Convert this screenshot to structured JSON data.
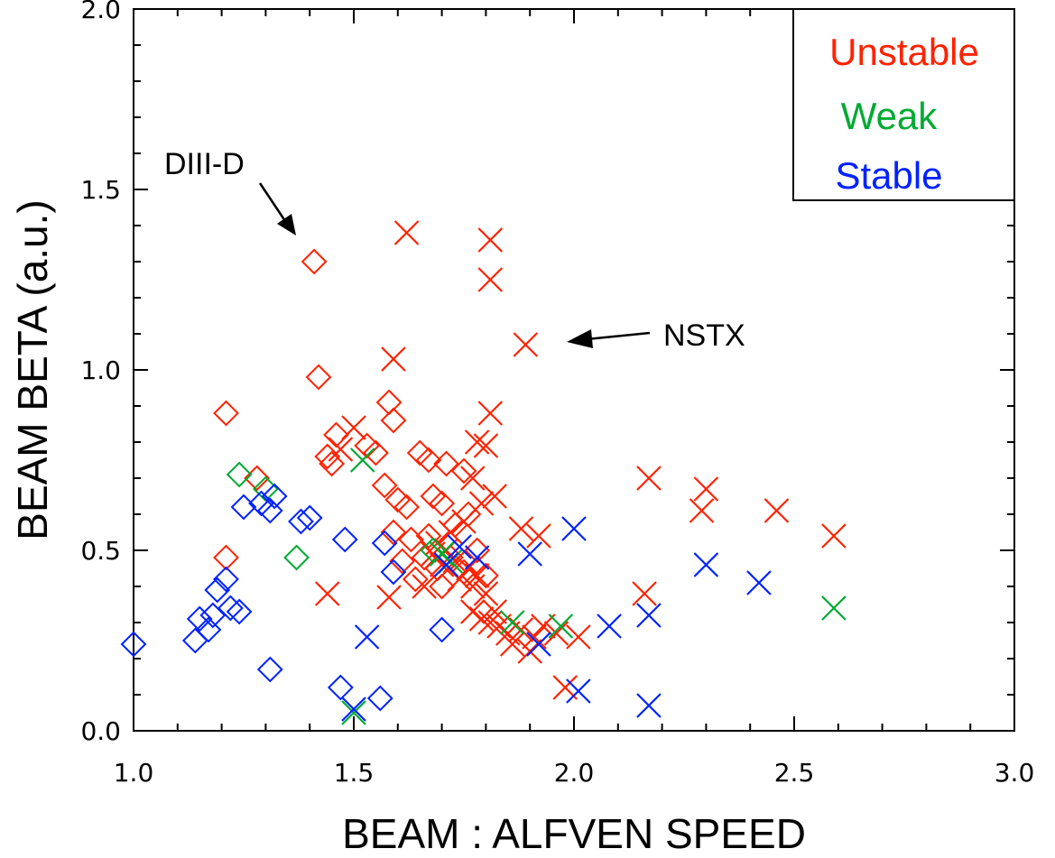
{
  "chart_data": {
    "type": "scatter",
    "xlabel": "BEAM : ALFVEN SPEED",
    "ylabel": "BEAM BETA (a.u.)",
    "xlim": [
      1.0,
      3.0
    ],
    "ylim": [
      0.0,
      2.0
    ],
    "x_ticks": [
      "1.0",
      "1.5",
      "2.0",
      "2.5",
      "3.0"
    ],
    "y_ticks": [
      "0.0",
      "0.5",
      "1.0",
      "1.5",
      "2.0"
    ],
    "grid": false,
    "legend_position": "top-right",
    "legend": [
      {
        "label": "Unstable",
        "color": "#ff2200"
      },
      {
        "label": "Weak",
        "color": "#00aa33"
      },
      {
        "label": "Stable",
        "color": "#0022ff"
      }
    ],
    "annotations": [
      {
        "text": "DIII-D",
        "points_to": [
          1.41,
          1.3
        ]
      },
      {
        "text": "NSTX",
        "points_to": [
          1.89,
          1.07
        ]
      }
    ],
    "series": [
      {
        "name": "Unstable",
        "color": "#ff2200",
        "diamonds": [
          [
            1.41,
            1.3
          ],
          [
            1.42,
            0.98
          ],
          [
            1.21,
            0.88
          ],
          [
            1.58,
            0.91
          ],
          [
            1.59,
            0.86
          ],
          [
            1.46,
            0.82
          ],
          [
            1.44,
            0.76
          ],
          [
            1.45,
            0.74
          ],
          [
            1.53,
            0.79
          ],
          [
            1.55,
            0.77
          ],
          [
            1.28,
            0.7
          ],
          [
            1.57,
            0.68
          ],
          [
            1.65,
            0.77
          ],
          [
            1.67,
            0.75
          ],
          [
            1.71,
            0.74
          ],
          [
            1.6,
            0.64
          ],
          [
            1.62,
            0.62
          ],
          [
            1.68,
            0.65
          ],
          [
            1.7,
            0.63
          ],
          [
            1.75,
            0.72
          ],
          [
            1.59,
            0.55
          ],
          [
            1.63,
            0.53
          ],
          [
            1.67,
            0.54
          ],
          [
            1.73,
            0.57
          ],
          [
            1.76,
            0.6
          ],
          [
            1.21,
            0.48
          ],
          [
            1.61,
            0.47
          ],
          [
            1.66,
            0.48
          ],
          [
            1.69,
            0.45
          ],
          [
            1.72,
            0.48
          ],
          [
            1.78,
            0.5
          ],
          [
            1.64,
            0.42
          ],
          [
            1.7,
            0.4
          ],
          [
            1.75,
            0.44
          ],
          [
            1.8,
            0.43
          ]
        ],
        "crosses": [
          [
            1.62,
            1.38
          ],
          [
            1.81,
            1.36
          ],
          [
            1.81,
            1.25
          ],
          [
            1.89,
            1.07
          ],
          [
            1.59,
            1.03
          ],
          [
            1.81,
            0.88
          ],
          [
            1.78,
            0.8
          ],
          [
            1.8,
            0.79
          ],
          [
            1.5,
            0.84
          ],
          [
            1.47,
            0.78
          ],
          [
            1.77,
            0.7
          ],
          [
            1.82,
            0.65
          ],
          [
            2.17,
            0.7
          ],
          [
            2.3,
            0.67
          ],
          [
            2.29,
            0.61
          ],
          [
            2.46,
            0.61
          ],
          [
            2.59,
            0.54
          ],
          [
            1.88,
            0.56
          ],
          [
            1.92,
            0.54
          ],
          [
            1.79,
            0.63
          ],
          [
            1.75,
            0.58
          ],
          [
            1.72,
            0.55
          ],
          [
            1.69,
            0.52
          ],
          [
            1.71,
            0.5
          ],
          [
            1.68,
            0.49
          ],
          [
            1.73,
            0.47
          ],
          [
            1.76,
            0.45
          ],
          [
            1.78,
            0.43
          ],
          [
            1.7,
            0.46
          ],
          [
            1.74,
            0.42
          ],
          [
            1.77,
            0.4
          ],
          [
            1.8,
            0.38
          ],
          [
            1.58,
            0.37
          ],
          [
            1.44,
            0.38
          ],
          [
            1.77,
            0.33
          ],
          [
            1.79,
            0.31
          ],
          [
            1.81,
            0.3
          ],
          [
            1.83,
            0.29
          ],
          [
            1.85,
            0.27
          ],
          [
            1.88,
            0.28
          ],
          [
            1.91,
            0.26
          ],
          [
            1.93,
            0.29
          ],
          [
            1.96,
            0.27
          ],
          [
            2.01,
            0.26
          ],
          [
            1.86,
            0.24
          ],
          [
            1.9,
            0.22
          ],
          [
            1.98,
            0.12
          ],
          [
            2.16,
            0.38
          ],
          [
            1.82,
            0.33
          ],
          [
            1.66,
            0.4
          ]
        ]
      },
      {
        "name": "Weak",
        "color": "#00aa33",
        "diamonds": [
          [
            1.24,
            0.71
          ],
          [
            1.3,
            0.67
          ],
          [
            1.37,
            0.48
          ],
          [
            1.68,
            0.5
          ]
        ],
        "crosses": [
          [
            1.52,
            0.75
          ],
          [
            1.7,
            0.49
          ],
          [
            1.86,
            0.3
          ],
          [
            1.97,
            0.29
          ],
          [
            2.59,
            0.34
          ],
          [
            1.5,
            0.05
          ],
          [
            1.72,
            0.47
          ]
        ]
      },
      {
        "name": "Stable",
        "color": "#0022ff",
        "diamonds": [
          [
            1.25,
            0.62
          ],
          [
            1.29,
            0.63
          ],
          [
            1.32,
            0.65
          ],
          [
            1.31,
            0.61
          ],
          [
            1.38,
            0.58
          ],
          [
            1.4,
            0.59
          ],
          [
            1.48,
            0.53
          ],
          [
            1.57,
            0.52
          ],
          [
            1.59,
            0.44
          ],
          [
            1.21,
            0.42
          ],
          [
            1.19,
            0.39
          ],
          [
            1.22,
            0.34
          ],
          [
            1.18,
            0.32
          ],
          [
            1.15,
            0.31
          ],
          [
            1.24,
            0.33
          ],
          [
            1.17,
            0.28
          ],
          [
            1.14,
            0.25
          ],
          [
            1.0,
            0.24
          ],
          [
            1.31,
            0.17
          ],
          [
            1.7,
            0.28
          ],
          [
            1.47,
            0.12
          ],
          [
            1.56,
            0.09
          ]
        ],
        "crosses": [
          [
            2.0,
            0.56
          ],
          [
            1.9,
            0.49
          ],
          [
            1.78,
            0.48
          ],
          [
            1.74,
            0.51
          ],
          [
            1.71,
            0.46
          ],
          [
            2.3,
            0.46
          ],
          [
            2.42,
            0.41
          ],
          [
            2.17,
            0.32
          ],
          [
            2.08,
            0.29
          ],
          [
            1.92,
            0.24
          ],
          [
            1.53,
            0.26
          ],
          [
            2.01,
            0.11
          ],
          [
            2.17,
            0.07
          ],
          [
            1.5,
            0.06
          ]
        ]
      }
    ]
  }
}
